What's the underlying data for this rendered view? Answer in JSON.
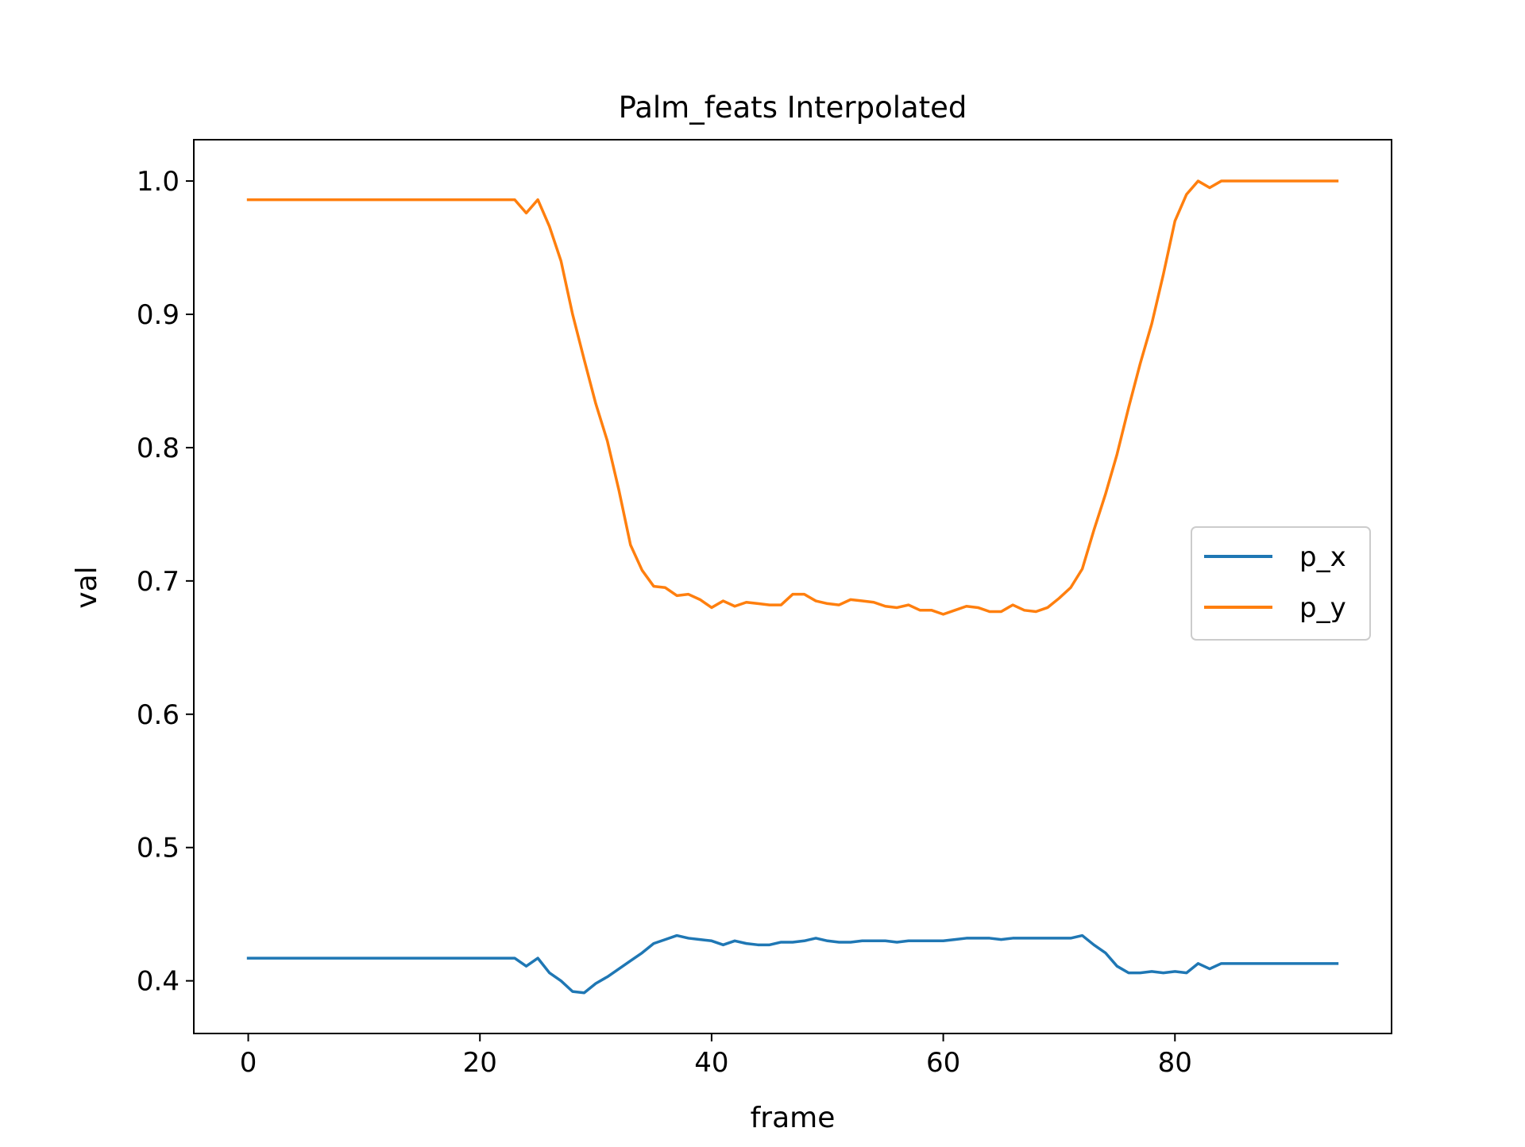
{
  "chart_data": {
    "type": "line",
    "title": "Palm_feats Interpolated",
    "xlabel": "frame",
    "ylabel": "val",
    "xlim": [
      -4.7,
      98.7
    ],
    "ylim": [
      0.3605,
      1.031
    ],
    "x_ticks": [
      0,
      20,
      40,
      60,
      80
    ],
    "y_ticks": [
      0.4,
      0.5,
      0.6,
      0.7,
      0.8,
      0.9,
      1.0
    ],
    "x_tick_labels": [
      "0",
      "20",
      "40",
      "60",
      "80"
    ],
    "y_tick_labels": [
      "0.4",
      "0.5",
      "0.6",
      "0.7",
      "0.8",
      "0.9",
      "1.0"
    ],
    "grid": false,
    "legend_position": "center-right",
    "series": [
      {
        "name": "p_x",
        "color": "#1f77b4",
        "x": [
          0,
          1,
          2,
          3,
          4,
          5,
          6,
          7,
          8,
          9,
          10,
          11,
          12,
          13,
          14,
          15,
          16,
          17,
          18,
          19,
          20,
          21,
          22,
          23,
          24,
          25,
          26,
          27,
          28,
          29,
          30,
          31,
          32,
          33,
          34,
          35,
          36,
          37,
          38,
          39,
          40,
          41,
          42,
          43,
          44,
          45,
          46,
          47,
          48,
          49,
          50,
          51,
          52,
          53,
          54,
          55,
          56,
          57,
          58,
          59,
          60,
          61,
          62,
          63,
          64,
          65,
          66,
          67,
          68,
          69,
          70,
          71,
          72,
          73,
          74,
          75,
          76,
          77,
          78,
          79,
          80,
          81,
          82,
          83,
          84,
          85,
          86,
          87,
          88,
          89,
          90,
          91,
          92,
          93,
          94
        ],
        "values": [
          0.417,
          0.417,
          0.417,
          0.417,
          0.417,
          0.417,
          0.417,
          0.417,
          0.417,
          0.417,
          0.417,
          0.417,
          0.417,
          0.417,
          0.417,
          0.417,
          0.417,
          0.417,
          0.417,
          0.417,
          0.417,
          0.417,
          0.417,
          0.417,
          0.411,
          0.417,
          0.406,
          0.4,
          0.392,
          0.391,
          0.398,
          0.403,
          0.409,
          0.415,
          0.421,
          0.428,
          0.431,
          0.434,
          0.432,
          0.431,
          0.43,
          0.427,
          0.43,
          0.428,
          0.427,
          0.427,
          0.429,
          0.429,
          0.43,
          0.432,
          0.43,
          0.429,
          0.429,
          0.43,
          0.43,
          0.43,
          0.429,
          0.43,
          0.43,
          0.43,
          0.43,
          0.431,
          0.432,
          0.432,
          0.432,
          0.431,
          0.432,
          0.432,
          0.432,
          0.432,
          0.432,
          0.432,
          0.434,
          0.427,
          0.421,
          0.411,
          0.406,
          0.406,
          0.407,
          0.406,
          0.407,
          0.406,
          0.413,
          0.409,
          0.413,
          0.413,
          0.413,
          0.413,
          0.413,
          0.413,
          0.413,
          0.413,
          0.413,
          0.413,
          0.413
        ]
      },
      {
        "name": "p_y",
        "color": "#ff7f0e",
        "x": [
          0,
          1,
          2,
          3,
          4,
          5,
          6,
          7,
          8,
          9,
          10,
          11,
          12,
          13,
          14,
          15,
          16,
          17,
          18,
          19,
          20,
          21,
          22,
          23,
          24,
          25,
          26,
          27,
          28,
          29,
          30,
          31,
          32,
          33,
          34,
          35,
          36,
          37,
          38,
          39,
          40,
          41,
          42,
          43,
          44,
          45,
          46,
          47,
          48,
          49,
          50,
          51,
          52,
          53,
          54,
          55,
          56,
          57,
          58,
          59,
          60,
          61,
          62,
          63,
          64,
          65,
          66,
          67,
          68,
          69,
          70,
          71,
          72,
          73,
          74,
          75,
          76,
          77,
          78,
          79,
          80,
          81,
          82,
          83,
          84,
          85,
          86,
          87,
          88,
          89,
          90,
          91,
          92,
          93,
          94
        ],
        "values": [
          0.986,
          0.986,
          0.986,
          0.986,
          0.986,
          0.986,
          0.986,
          0.986,
          0.986,
          0.986,
          0.986,
          0.986,
          0.986,
          0.986,
          0.986,
          0.986,
          0.986,
          0.986,
          0.986,
          0.986,
          0.986,
          0.986,
          0.986,
          0.986,
          0.976,
          0.986,
          0.966,
          0.94,
          0.9,
          0.866,
          0.833,
          0.805,
          0.768,
          0.727,
          0.708,
          0.696,
          0.695,
          0.689,
          0.69,
          0.686,
          0.68,
          0.685,
          0.681,
          0.684,
          0.683,
          0.682,
          0.682,
          0.69,
          0.69,
          0.685,
          0.683,
          0.682,
          0.686,
          0.685,
          0.684,
          0.681,
          0.68,
          0.682,
          0.678,
          0.678,
          0.675,
          0.678,
          0.681,
          0.68,
          0.677,
          0.677,
          0.682,
          0.678,
          0.677,
          0.68,
          0.687,
          0.695,
          0.709,
          0.738,
          0.765,
          0.795,
          0.83,
          0.863,
          0.893,
          0.93,
          0.97,
          0.99,
          1.0,
          0.995,
          1.0,
          1.0,
          1.0,
          1.0,
          1.0,
          1.0,
          1.0,
          1.0,
          1.0,
          1.0,
          1.0
        ]
      }
    ]
  }
}
